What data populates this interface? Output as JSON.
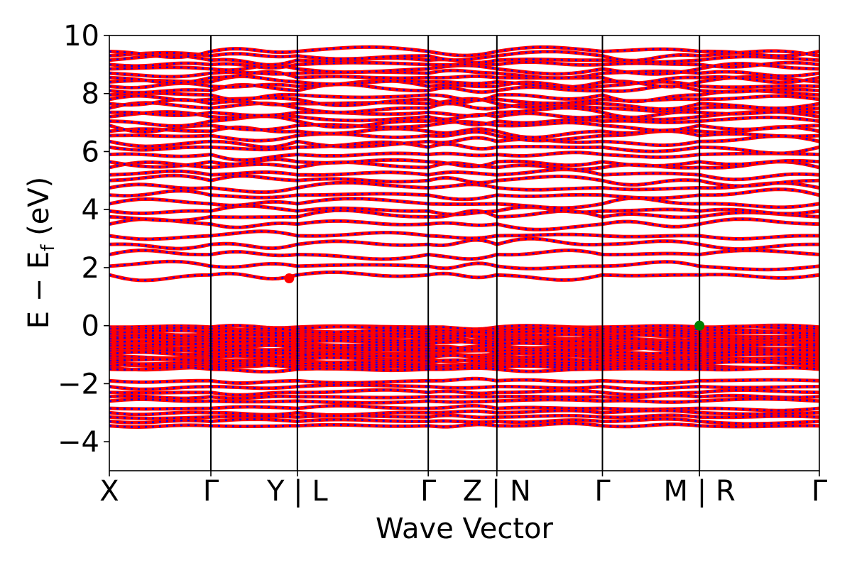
{
  "chart_data": {
    "type": "line",
    "title": "",
    "xlabel": "Wave Vector",
    "ylabel_main": "E − E",
    "ylabel_sub": "f",
    "ylabel_unit": " (eV)",
    "ylim": [
      -5,
      10
    ],
    "yticks": [
      {
        "value": -4,
        "label": "−4"
      },
      {
        "value": -2,
        "label": "−2"
      },
      {
        "value": 0,
        "label": "0"
      },
      {
        "value": 2,
        "label": "2"
      },
      {
        "value": 4,
        "label": "4"
      },
      {
        "value": 6,
        "label": "6"
      },
      {
        "value": 8,
        "label": "8"
      },
      {
        "value": 10,
        "label": "10"
      }
    ],
    "kpath_segments": [
      {
        "name": "X-Γ",
        "length": 0.858
      },
      {
        "name": "Γ-Y",
        "length": 0.731
      },
      {
        "name": "L-Γ",
        "length": 1.106
      },
      {
        "name": "Γ-Z",
        "length": 0.58
      },
      {
        "name": "N-Γ",
        "length": 0.892
      },
      {
        "name": "Γ-M",
        "length": 0.82
      },
      {
        "name": "R-Γ",
        "length": 1.013
      }
    ],
    "xticks": [
      {
        "pos": 0,
        "label": "X"
      },
      {
        "pos": 0.858,
        "label": "Γ"
      },
      {
        "pos": 1.589,
        "label": "Y | L"
      },
      {
        "pos": 2.695,
        "label": "Γ"
      },
      {
        "pos": 3.275,
        "label": "Z | N"
      },
      {
        "pos": 4.167,
        "label": "Γ"
      },
      {
        "pos": 4.987,
        "label": "M | R"
      },
      {
        "pos": 6.0,
        "label": "Γ"
      }
    ],
    "xlim": [
      0,
      6.0
    ],
    "series_colors": {
      "spin_up": "#ff0000",
      "spin_down": "#0000ff"
    },
    "vertical_line_color": "#000000",
    "conduction_band_minimum": {
      "x": 1.52,
      "y": 1.63,
      "color": "#ff0000"
    },
    "valence_band_maximum": {
      "x": 4.987,
      "y": 0.0,
      "color": "#008000"
    },
    "grid": false,
    "legend": "none"
  }
}
